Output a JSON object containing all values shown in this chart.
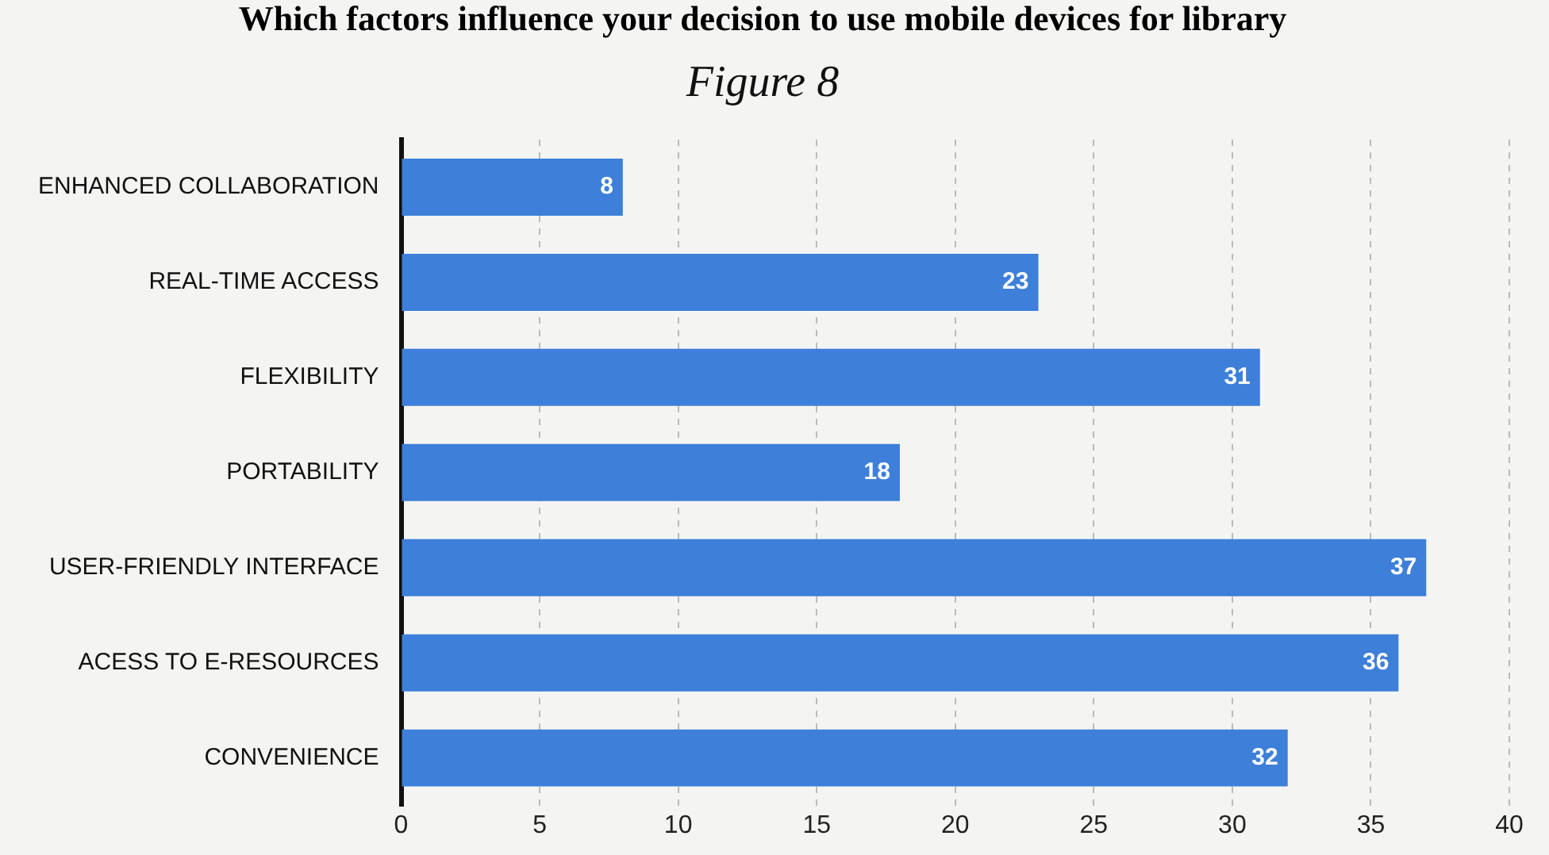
{
  "chart_data": {
    "type": "bar",
    "orientation": "horizontal",
    "title": "Which factors influence your decision to use mobile devices for library",
    "subtitle": "Figure 8",
    "categories": [
      "ENHANCED COLLABORATION",
      "REAL-TIME ACCESS",
      "FLEXIBILITY",
      "PORTABILITY",
      "USER-FRIENDLY INTERFACE",
      "ACESS TO E-RESOURCES",
      "CONVENIENCE"
    ],
    "values": [
      8,
      23,
      31,
      18,
      37,
      36,
      32
    ],
    "color": "#3d7fd9",
    "xlim": [
      0,
      40
    ],
    "xticks": [
      0,
      5,
      10,
      15,
      20,
      25,
      30,
      35,
      40
    ],
    "grid": "x",
    "data_labels": true,
    "legend": false
  }
}
